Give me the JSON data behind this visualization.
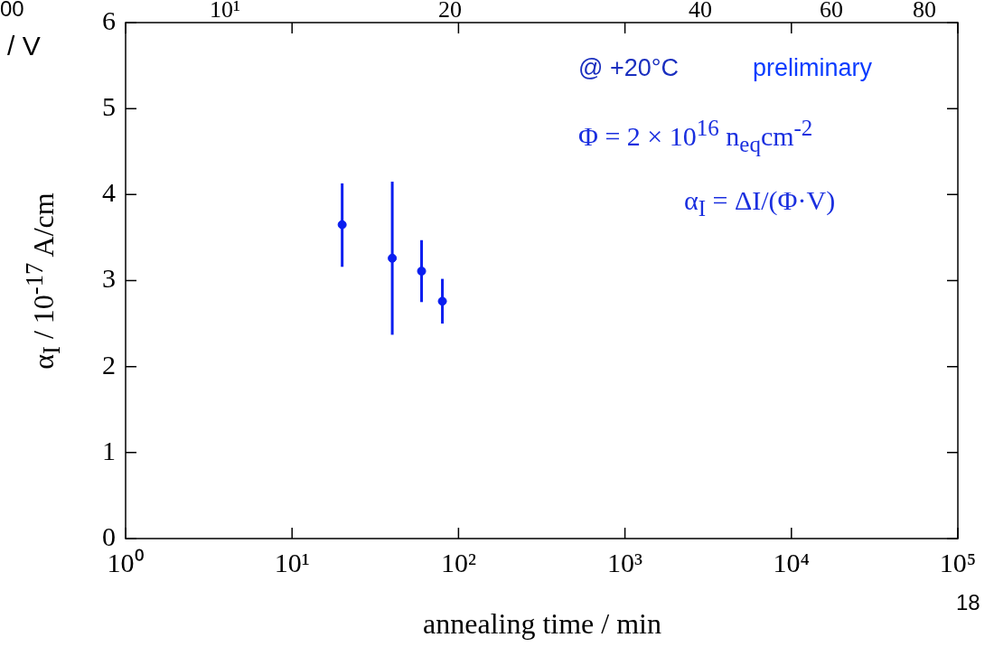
{
  "chart_data": {
    "type": "scatter",
    "xlabel": "annealing time / min",
    "ylabel": "α$_{I}$ / 10$^{-17}$ A/cm",
    "x": [
      20,
      40,
      60,
      80
    ],
    "series": [
      {
        "color": "#0a1ef0",
        "values": [
          3.65,
          3.26,
          3.11,
          2.76
        ],
        "errors": [
          [
            3.16,
            4.13
          ],
          [
            2.37,
            4.15
          ],
          [
            2.75,
            3.47
          ],
          [
            2.5,
            3.02
          ]
        ]
      }
    ],
    "log": "x",
    "marker": "circle",
    "xlim": [
      1,
      100000
    ],
    "xticks": [
      {
        "value": 1,
        "label": "10⁰"
      },
      {
        "value": 10,
        "label": "10¹"
      },
      {
        "value": 100,
        "label": "10²"
      },
      {
        "value": 1000,
        "label": "10³"
      },
      {
        "value": 10000,
        "label": "10⁴"
      },
      {
        "value": 100000,
        "label": "10⁵"
      }
    ],
    "ylim": [
      0,
      6
    ],
    "yticks": [
      0,
      1,
      2,
      3,
      4,
      5,
      6
    ],
    "grid": false,
    "legend": false,
    "annotations": [
      "@ +20°C",
      "preliminary",
      "Φ = 2 × 10$^{16}$ n$_{eq}$cm$^{-2}$",
      "α$_{I}$ = ΔI/(Φ·V)",
      "10¹",
      "20",
      "40",
      "60",
      "80",
      "00",
      "/ V",
      "18"
    ]
  }
}
